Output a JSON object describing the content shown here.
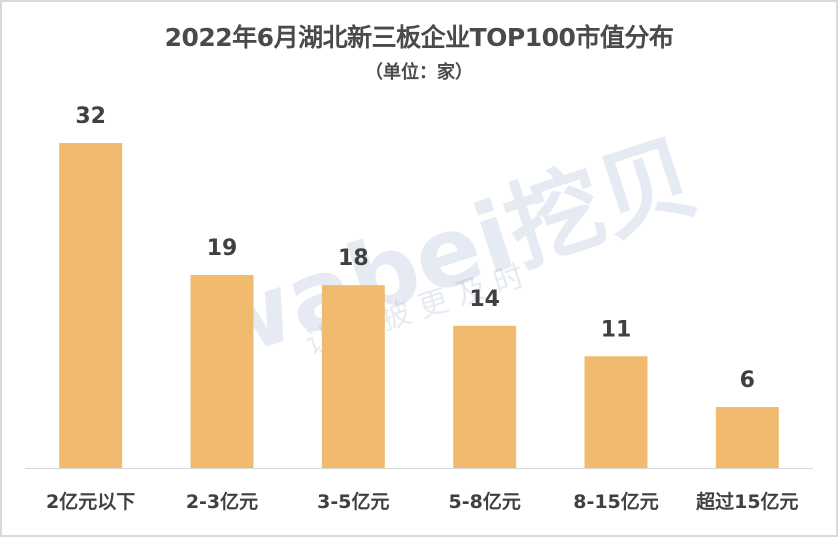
{
  "chart_data": {
    "type": "bar",
    "title": "2022年6月湖北新三板企业TOP100市值分布",
    "subtitle": "（单位：家）",
    "categories": [
      "2亿元以下",
      "2-3亿元",
      "3-5亿元",
      "5-8亿元",
      "8-15亿元",
      "超过15亿元"
    ],
    "values": [
      32,
      19,
      18,
      14,
      11,
      6
    ],
    "xlabel": "",
    "ylabel": "",
    "ylim": [
      0,
      32
    ],
    "grid": false,
    "bar_color": "#f0bb6e"
  },
  "watermark": {
    "logo": "wabei挖贝",
    "slogan": "让 信 披 更 及 时"
  }
}
